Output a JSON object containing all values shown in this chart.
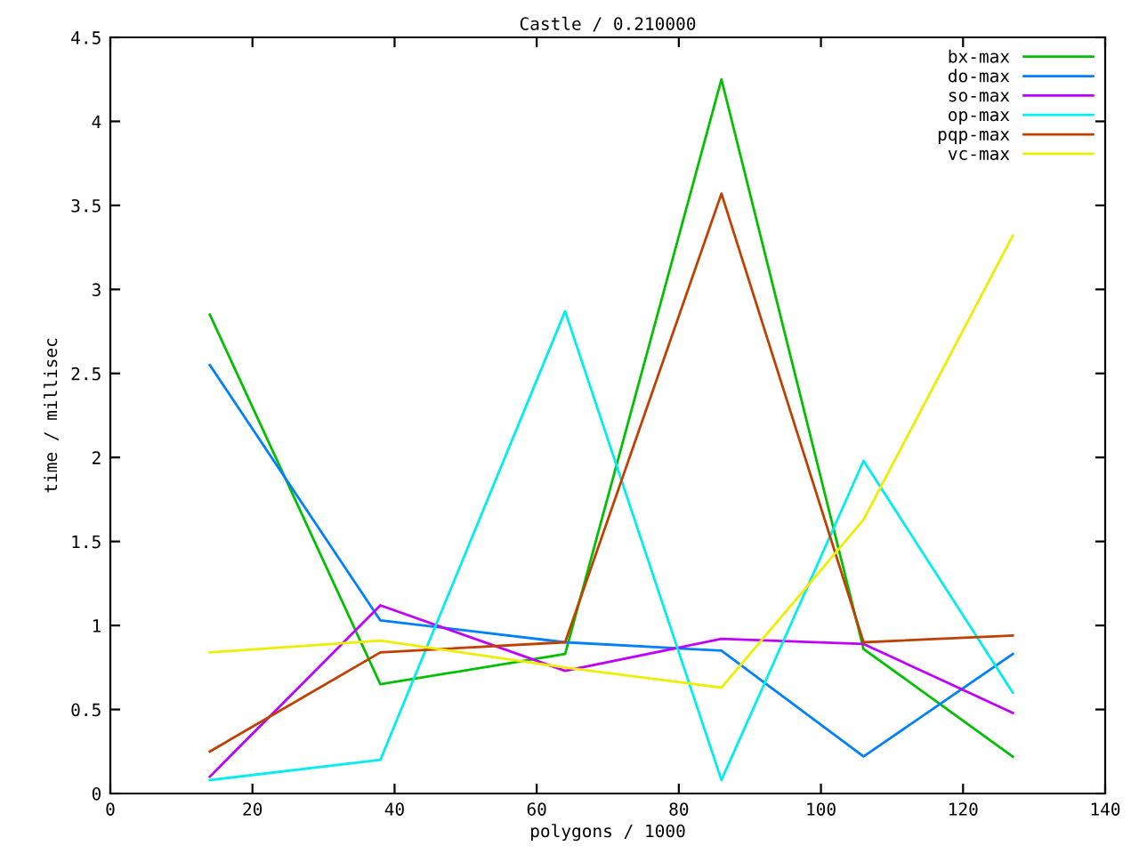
{
  "chart_data": {
    "type": "line",
    "title": "Castle / 0.210000",
    "xlabel": "polygons / 1000",
    "ylabel": "time / millisec",
    "x": [
      14,
      38,
      64,
      86,
      106,
      127
    ],
    "series": [
      {
        "name": "bx-max",
        "color": "#00c000",
        "values": [
          2.85,
          0.65,
          0.83,
          4.25,
          0.86,
          0.22
        ]
      },
      {
        "name": "do-max",
        "color": "#0080ff",
        "values": [
          2.55,
          1.03,
          0.9,
          0.85,
          0.22,
          0.83
        ]
      },
      {
        "name": "so-max",
        "color": "#c000ff",
        "values": [
          0.1,
          1.12,
          0.73,
          0.92,
          0.89,
          0.48
        ]
      },
      {
        "name": "op-max",
        "color": "#00eeee",
        "values": [
          0.08,
          0.2,
          2.87,
          0.08,
          1.98,
          0.6
        ]
      },
      {
        "name": "pqp-max",
        "color": "#c04000",
        "values": [
          0.25,
          0.84,
          0.9,
          3.57,
          0.9,
          0.94
        ]
      },
      {
        "name": "vc-max",
        "color": "#eeee00",
        "values": [
          0.84,
          0.91,
          0.75,
          0.63,
          1.63,
          3.32
        ]
      }
    ],
    "xlim": [
      0,
      140
    ],
    "xticks": [
      0,
      20,
      40,
      60,
      80,
      100,
      120,
      140
    ],
    "ylim": [
      0,
      4.5
    ],
    "yticks": [
      0,
      0.5,
      1,
      1.5,
      2,
      2.5,
      3,
      3.5,
      4,
      4.5
    ],
    "grid": false,
    "legend": "top right",
    "marker": "none",
    "line_style": "solid"
  }
}
